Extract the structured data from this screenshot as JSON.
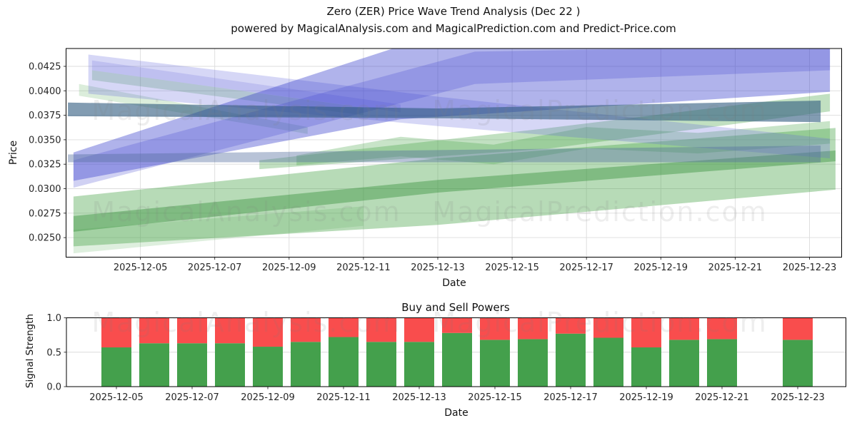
{
  "figure": {
    "title": "Zero (ZER) Price Wave Trend Analysis (Dec 22 )",
    "subtitle": "powered by MagicalAnalysis.com and MagicalPrediction.com and Predict-Price.com"
  },
  "watermarks": {
    "left_text": "MagicalAnalysis.com",
    "right_text": "MagicalPrediction.com",
    "color": "#808080",
    "opacity": 0.13
  },
  "price_chart": {
    "ylabel": "Price",
    "xlabel": "Date"
  },
  "power_chart": {
    "title": "Buy and Sell Powers",
    "ylabel": "Signal Strength",
    "xlabel": "Date"
  },
  "chart_data": [
    {
      "type": "area",
      "title": "Zero (ZER) Price Wave Trend Analysis (Dec 22 )",
      "subtitle": "powered by MagicalAnalysis.com and MagicalPrediction.com and Predict-Price.com",
      "xlabel": "Date",
      "ylabel": "Price",
      "grid": true,
      "legend": "none",
      "ylim": [
        0.023,
        0.0443
      ],
      "x_axis_start_date": "2025-12-03",
      "xlim_days": [
        0,
        20.87
      ],
      "ytick_labels": [
        "0.0250",
        "0.0275",
        "0.0300",
        "0.0325",
        "0.0350",
        "0.0375",
        "0.0400",
        "0.0425"
      ],
      "ytick_values": [
        0.025,
        0.0275,
        0.03,
        0.0325,
        0.035,
        0.0375,
        0.04,
        0.0425
      ],
      "xtick_labels": [
        "2025-12-05",
        "2025-12-07",
        "2025-12-09",
        "2025-12-11",
        "2025-12-13",
        "2025-12-15",
        "2025-12-17",
        "2025-12-19",
        "2025-12-21",
        "2025-12-23"
      ],
      "xtick_days": [
        2,
        4,
        6,
        8,
        10,
        12,
        14,
        16,
        18,
        20
      ],
      "bands": [
        {
          "name": "green-lower-wide",
          "color": "#4aa44a",
          "opacity": 0.4,
          "points": [
            [
              0.2,
              0.0292
            ],
            [
              10,
              0.0331
            ],
            [
              20.7,
              0.0362
            ],
            [
              20.7,
              0.0299
            ],
            [
              10,
              0.0263
            ],
            [
              0.2,
              0.0241
            ]
          ]
        },
        {
          "name": "green-left-foot",
          "color": "#4aa44a",
          "opacity": 0.18,
          "points": [
            [
              0.2,
              0.0258
            ],
            [
              8,
              0.0282
            ],
            [
              8,
              0.0262
            ],
            [
              0.2,
              0.0234
            ]
          ]
        },
        {
          "name": "green-lower-core",
          "color": "#2e8b32",
          "opacity": 0.4,
          "points": [
            [
              0.2,
              0.0272
            ],
            [
              10,
              0.0309
            ],
            [
              20.7,
              0.0339
            ],
            [
              20.7,
              0.0328
            ],
            [
              10,
              0.0296
            ],
            [
              0.2,
              0.0256
            ]
          ]
        },
        {
          "name": "green-upper-band",
          "color": "#4aa44a",
          "opacity": 0.34,
          "points": [
            [
              5.2,
              0.0329
            ],
            [
              13,
              0.0362
            ],
            [
              20.55,
              0.0397
            ],
            [
              20.55,
              0.0379
            ],
            [
              13,
              0.0341
            ],
            [
              5.2,
              0.032
            ]
          ]
        },
        {
          "name": "green-wave-band",
          "color": "#4aa44a",
          "opacity": 0.3,
          "points": [
            [
              6.2,
              0.0334
            ],
            [
              9,
              0.0353
            ],
            [
              11.5,
              0.0345
            ],
            [
              14,
              0.0363
            ],
            [
              17,
              0.0357
            ],
            [
              20.55,
              0.0369
            ],
            [
              20.55,
              0.0346
            ],
            [
              17,
              0.0336
            ],
            [
              14,
              0.0341
            ],
            [
              11.5,
              0.0325
            ],
            [
              9,
              0.0333
            ],
            [
              6.2,
              0.0324
            ]
          ]
        },
        {
          "name": "green-sliver-upper",
          "color": "#4aa44a",
          "opacity": 0.26,
          "points": [
            [
              0.7,
              0.0421
            ],
            [
              8,
              0.0383
            ],
            [
              8,
              0.0375
            ],
            [
              0.7,
              0.0411
            ]
          ]
        },
        {
          "name": "green-sliver-lower",
          "color": "#4aa44a",
          "opacity": 0.2,
          "points": [
            [
              0.35,
              0.0407
            ],
            [
              6.5,
              0.0363
            ],
            [
              6.5,
              0.0356
            ],
            [
              0.35,
              0.0395
            ]
          ]
        },
        {
          "name": "blue-descending-wide",
          "color": "#6266dd",
          "opacity": 0.26,
          "points": [
            [
              0.6,
              0.0437
            ],
            [
              10,
              0.0394
            ],
            [
              20.55,
              0.0351
            ],
            [
              20.55,
              0.0331
            ],
            [
              10,
              0.0364
            ],
            [
              0.6,
              0.0397
            ]
          ]
        },
        {
          "name": "blue-descending-wedge",
          "color": "#6266dd",
          "opacity": 0.2,
          "points": [
            [
              0.7,
              0.0431
            ],
            [
              9,
              0.0386
            ],
            [
              9,
              0.0378
            ],
            [
              0.7,
              0.0421
            ]
          ]
        },
        {
          "name": "blue-rising-main",
          "color": "#3a40cc",
          "opacity": 0.4,
          "points": [
            [
              0.2,
              0.0337
            ],
            [
              9.5,
              0.0452
            ],
            [
              20.55,
              0.0452
            ],
            [
              20.55,
              0.0399
            ],
            [
              9,
              0.0371
            ],
            [
              0.2,
              0.0308
            ]
          ]
        },
        {
          "name": "blue-rising-secondary",
          "color": "#3a40cc",
          "opacity": 0.24,
          "points": [
            [
              0.2,
              0.0329
            ],
            [
              11,
              0.044
            ],
            [
              20.55,
              0.0446
            ],
            [
              20.55,
              0.0421
            ],
            [
              11,
              0.0407
            ],
            [
              0.2,
              0.0301
            ]
          ]
        },
        {
          "name": "steel-band",
          "color": "#2f5a7e",
          "opacity": 0.6,
          "points": [
            [
              0.05,
              0.0388
            ],
            [
              10,
              0.0382
            ],
            [
              20.3,
              0.039
            ],
            [
              20.3,
              0.0368
            ],
            [
              10,
              0.0372
            ],
            [
              0.05,
              0.0374
            ]
          ]
        },
        {
          "name": "slate-band",
          "color": "#5570a0",
          "opacity": 0.42,
          "points": [
            [
              0.05,
              0.0335
            ],
            [
              20.3,
              0.0344
            ],
            [
              20.3,
              0.0327
            ],
            [
              0.05,
              0.0327
            ]
          ]
        }
      ]
    },
    {
      "type": "bar",
      "subtype": "stacked",
      "title": "Buy and Sell Powers",
      "xlabel": "Date",
      "ylabel": "Signal Strength",
      "grid": true,
      "legend": "none",
      "ylim": [
        0.0,
        1.0
      ],
      "ytick_labels": [
        "0.0",
        "0.5",
        "1.0"
      ],
      "ytick_values": [
        0.0,
        0.5,
        1.0
      ],
      "xtick_labels": [
        "2025-12-05",
        "2025-12-07",
        "2025-12-09",
        "2025-12-11",
        "2025-12-13",
        "2025-12-15",
        "2025-12-17",
        "2025-12-19",
        "2025-12-21",
        "2025-12-23"
      ],
      "categories": [
        "2025-12-05",
        "2025-12-06",
        "2025-12-07",
        "2025-12-08",
        "2025-12-09",
        "2025-12-10",
        "2025-12-11",
        "2025-12-12",
        "2025-12-13",
        "2025-12-14",
        "2025-12-15",
        "2025-12-16",
        "2025-12-17",
        "2025-12-18",
        "2025-12-19",
        "2025-12-20",
        "2025-12-21",
        "2025-12-23"
      ],
      "series": [
        {
          "name": "Buy Power",
          "color": "#44a04c",
          "values": [
            0.57,
            0.63,
            0.63,
            0.63,
            0.58,
            0.65,
            0.72,
            0.65,
            0.65,
            0.78,
            0.68,
            0.69,
            0.77,
            0.71,
            0.57,
            0.68,
            0.69,
            0.68
          ]
        },
        {
          "name": "Sell Power",
          "color": "#f94d4d",
          "values": [
            0.43,
            0.37,
            0.37,
            0.37,
            0.42,
            0.35,
            0.28,
            0.35,
            0.35,
            0.22,
            0.32,
            0.31,
            0.23,
            0.29,
            0.43,
            0.32,
            0.31,
            0.32
          ]
        }
      ]
    }
  ]
}
